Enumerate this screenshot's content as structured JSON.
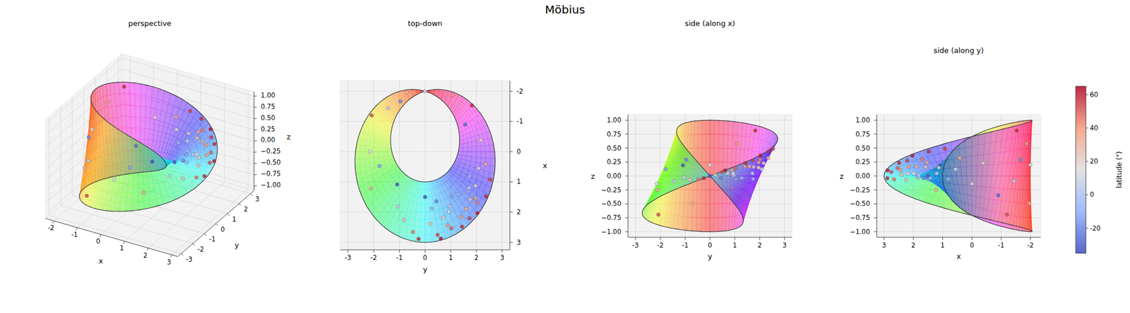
{
  "chart_data": {
    "type": "scatter3d",
    "title": "Möbius",
    "panel_titles": [
      "perspective",
      "top-down",
      "side (along x)",
      "side (along y)"
    ],
    "xlabel": "x",
    "ylabel": "y",
    "zlabel": "z",
    "xlim": [
      -2.35,
      3.25
    ],
    "ylim": [
      -3.3,
      3.3
    ],
    "zlim": [
      -1.1,
      1.1
    ],
    "xticks": [
      -2,
      -1,
      0,
      1,
      2,
      3
    ],
    "yticks": [
      -3,
      -2,
      -1,
      0,
      1,
      2,
      3
    ],
    "zticks": [
      {
        "value": -1,
        "label": "−1.00"
      },
      {
        "value": -0.75,
        "label": "−0.75"
      },
      {
        "value": -0.5,
        "label": "−0.50"
      },
      {
        "value": -0.25,
        "label": "−0.25"
      },
      {
        "value": 0,
        "label": "0.00"
      },
      {
        "value": 0.25,
        "label": "0.25"
      },
      {
        "value": 0.5,
        "label": "0.50"
      },
      {
        "value": 0.75,
        "label": "0.75"
      },
      {
        "value": 1,
        "label": "1.00"
      }
    ],
    "grid": true,
    "strip_radius": 2,
    "strip_half_width": 1,
    "points": {
      "x": [
        2.755,
        2.436,
        2.485,
        1.892,
        1.694,
        1.13,
        1.989,
        1.645,
        1.482,
        2.035,
        0.922,
        0.415,
        2.39,
        1.5,
        2.657,
        2.25,
        1.816,
        1.199,
        0.81,
        -0.382,
        -0.9,
        -1.866,
        1.217,
        0,
        -1.2,
        -1.665,
        -2,
        -1.962,
        1.087,
        2.88,
        2.537,
        2.21,
        1.583,
        1.809,
        1.417,
        2.184,
        1.881,
        2.888,
        1.478,
        2.16,
        0.559,
        0.477,
        -1.531,
        -1.441,
        1.536
      ],
      "y": [
        0.487,
        0.886,
        1.435,
        1.588,
        2.018,
        1.957,
        0.929,
        0.441,
        1.038,
        2.035,
        2.534,
        2.347,
        0.209,
        0,
        -0.469,
        -0.819,
        -1.048,
        1.711,
        1.736,
        2.16,
        1.559,
        1.078,
        -2.107,
        -2.141,
        -2.078,
        -0.961,
        0,
        -0.714,
        -1.087,
        0.613,
        1.026,
        1.727,
        1.758,
        0.961,
        1.276,
        0.709,
        0.264,
        -0.253,
        2.364,
        1.403,
        2.086,
        -1.778,
        1.824,
        -1.441,
        1.965
      ],
      "z": [
        0.07,
        0.104,
        0.233,
        0.171,
        0.296,
        0.15,
        0.043,
        -0.039,
        -0.06,
        0.364,
        0.488,
        0.322,
        0.018,
        0,
        -0.061,
        -0.07,
        -0.026,
        0.046,
        -0.054,
        0.23,
        -0.346,
        0.58,
        -0.25,
        -0.141,
        -0.693,
        0.29,
        0.2,
        -0.492,
        0.191,
        0.1,
        0.143,
        0.277,
        0.163,
        0.012,
        -0.036,
        0.047,
        -0.007,
        -0.04,
        0.437,
        0.17,
        0.122,
        0.122,
        0.815,
        -0.092,
        0.241
      ],
      "latitude": [
        52,
        39,
        58,
        32,
        45,
        20,
        13,
        -20,
        -13,
        62,
        55,
        33,
        26,
        -32,
        46,
        26,
        7,
        6,
        -6,
        19,
        -26,
        39,
        32,
        13,
        52,
        -20,
        13,
        32,
        -32,
        62,
        49,
        55,
        26,
        3,
        -6,
        20,
        -6,
        58,
        58,
        39,
        13,
        -13,
        58,
        6,
        36
      ]
    },
    "colorbar": {
      "label": "latitude (°)",
      "range": [
        -35,
        65
      ],
      "ticks": [
        -20,
        0,
        20,
        40,
        60
      ]
    }
  }
}
